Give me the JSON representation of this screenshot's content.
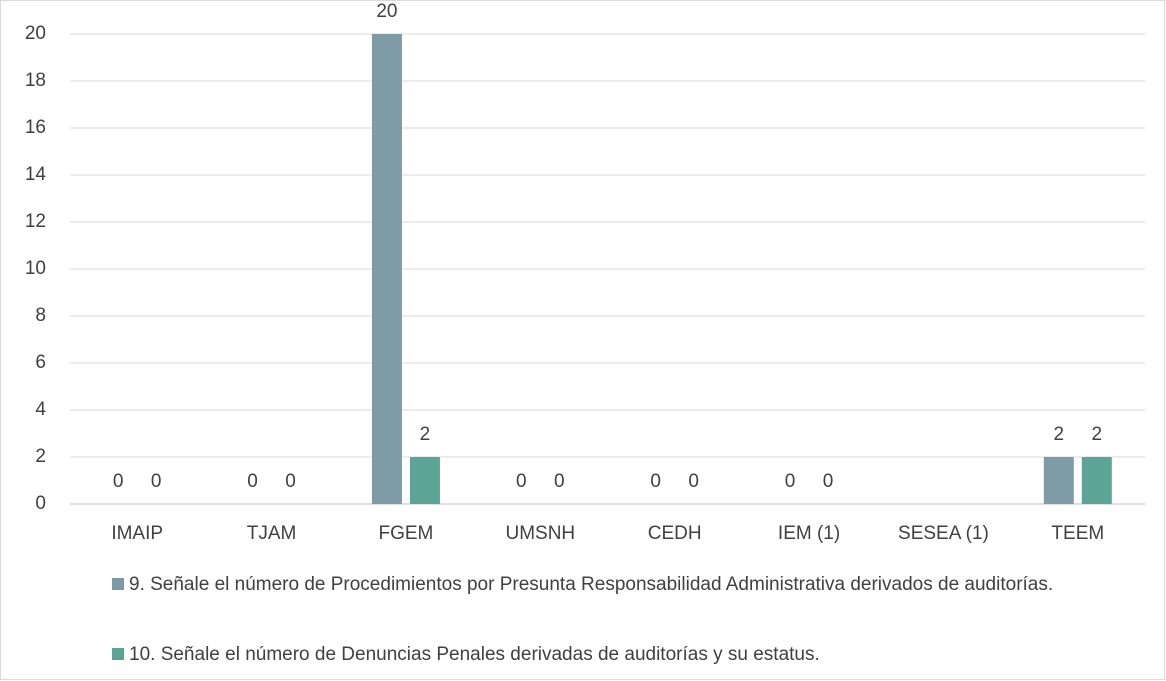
{
  "chart_data": {
    "type": "bar",
    "categories": [
      "IMAIP",
      "TJAM",
      "FGEM",
      "UMSNH",
      "CEDH",
      "IEM (1)",
      "SESEA (1)",
      "TEEM"
    ],
    "series": [
      {
        "name": "9. Señale el número de Procedimientos por Presunta Responsabilidad Administrativa derivados de auditorías.",
        "color": "#7f9ba6",
        "values": [
          0,
          0,
          20,
          0,
          0,
          0,
          null,
          2
        ]
      },
      {
        "name": "10. Señale el número de Denuncias Penales derivadas de auditorías y su estatus.",
        "color": "#5ba496",
        "values": [
          0,
          0,
          2,
          0,
          0,
          0,
          null,
          2
        ]
      }
    ],
    "ylim": [
      0,
      20
    ],
    "yticks": [
      0,
      2,
      4,
      6,
      8,
      10,
      12,
      14,
      16,
      18,
      20
    ],
    "grid": true,
    "legend": "bottom"
  }
}
